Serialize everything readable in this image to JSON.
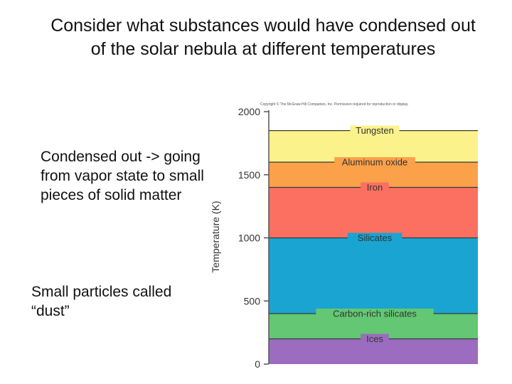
{
  "slide": {
    "title": "Consider what substances would have condensed out of the solar nebula at different temperatures",
    "bullets": [
      "Condensed out -> going from vapor state to small pieces of solid matter",
      "Small particles called “dust”"
    ]
  },
  "figure": {
    "copyright": "Copyright © The McGraw-Hill Companies, Inc. Permission required for reproduction or display.",
    "axis_label": "Temperature (K)",
    "ticks": [
      "2000",
      "1500",
      "1000",
      "500",
      "0"
    ],
    "bands": [
      {
        "name": "Ices",
        "from": 0,
        "to": 200,
        "color": "#9b6cc0"
      },
      {
        "name": "Carbon-rich silicates",
        "from": 200,
        "to": 400,
        "color": "#63c773"
      },
      {
        "name": "Silicates",
        "from": 400,
        "to": 1000,
        "color": "#1aa4d2"
      },
      {
        "name": "Iron",
        "from": 1000,
        "to": 1400,
        "color": "#fb7060"
      },
      {
        "name": "Aluminum oxide",
        "from": 1400,
        "to": 1600,
        "color": "#fba14a"
      },
      {
        "name": "Tungsten",
        "from": 1600,
        "to": 1850,
        "color": "#fbf28c"
      }
    ],
    "condensation_lines": [
      {
        "label": "Tungsten",
        "temp": 1850
      },
      {
        "label": "Aluminum oxide",
        "temp": 1600
      },
      {
        "label": "Iron",
        "temp": 1400
      },
      {
        "label": "Silicates",
        "temp": 1000
      },
      {
        "label": "Carbon-rich silicates",
        "temp": 400
      },
      {
        "label": "Ices",
        "temp": 200
      }
    ],
    "y_range": [
      0,
      2000
    ]
  }
}
